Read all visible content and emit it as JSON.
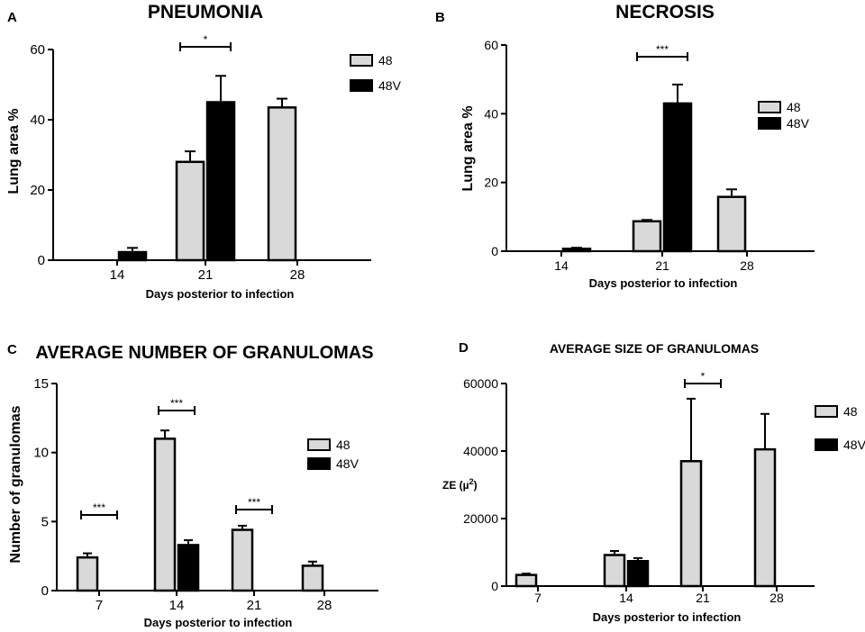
{
  "colors": {
    "series_48": "#d9d9d9",
    "series_48V": "#000000",
    "stroke": "#000000"
  },
  "chart_data": [
    {
      "panel": "A",
      "type": "bar",
      "title": "PNEUMONIA",
      "xlabel": "Days posterior to infection",
      "ylabel": "Lung area %",
      "ylim": [
        0,
        60
      ],
      "yticks": [
        "0",
        "20",
        "40",
        "60"
      ],
      "categories": [
        "14",
        "21",
        "28"
      ],
      "legend": [
        "48",
        "48V"
      ],
      "legend_position": "top-right",
      "series": [
        {
          "name": "48",
          "values": [
            null,
            28,
            43.5
          ],
          "errors": [
            null,
            3,
            2.5
          ]
        },
        {
          "name": "48V",
          "values": [
            2.3,
            45,
            null
          ],
          "errors": [
            1.2,
            7.5,
            null
          ]
        }
      ],
      "significance": [
        {
          "category": "21",
          "label": "*"
        }
      ]
    },
    {
      "panel": "B",
      "type": "bar",
      "title": "NECROSIS",
      "xlabel": "Days posterior to infection",
      "ylabel": "Lung area %",
      "ylim": [
        0,
        60
      ],
      "yticks": [
        "0",
        "20",
        "40",
        "60"
      ],
      "categories": [
        "14",
        "21",
        "28"
      ],
      "legend": [
        "48",
        "48V"
      ],
      "legend_position": "middle-right",
      "series": [
        {
          "name": "48",
          "values": [
            null,
            8.7,
            15.8
          ],
          "errors": [
            null,
            0.4,
            2.2
          ]
        },
        {
          "name": "48V",
          "values": [
            0.7,
            43,
            null
          ],
          "errors": [
            0.3,
            5.5,
            null
          ]
        }
      ],
      "significance": [
        {
          "category": "21",
          "label": "***"
        }
      ]
    },
    {
      "panel": "C",
      "type": "bar",
      "title": "AVERAGE NUMBER OF GRANULOMAS",
      "xlabel": "Days posterior to infection",
      "ylabel": "Number of granulomas",
      "ylim": [
        0,
        15
      ],
      "yticks": [
        "0",
        "5",
        "10",
        "15"
      ],
      "categories": [
        "7",
        "14",
        "21",
        "28"
      ],
      "legend": [
        "48",
        "48V"
      ],
      "legend_position": "middle-right",
      "series": [
        {
          "name": "48",
          "values": [
            2.4,
            11,
            4.4,
            1.8
          ],
          "errors": [
            0.3,
            0.6,
            0.3,
            0.3
          ]
        },
        {
          "name": "48V",
          "values": [
            null,
            3.3,
            null,
            null
          ],
          "errors": [
            null,
            0.35,
            null,
            null
          ]
        }
      ],
      "significance": [
        {
          "category": "7",
          "label": "***"
        },
        {
          "category": "14",
          "label": "***"
        },
        {
          "category": "21",
          "label": "***"
        }
      ]
    },
    {
      "panel": "D",
      "type": "bar",
      "title": "AVERAGE SIZE OF GRANULOMAS",
      "xlabel": "Days posterior to infection",
      "ylabel": "ZE (µ²)",
      "ylim": [
        0,
        60000
      ],
      "yticks": [
        "0",
        "20000",
        "40000",
        "60000"
      ],
      "categories": [
        "7",
        "14",
        "21",
        "28"
      ],
      "legend": [
        "48",
        "48V"
      ],
      "legend_position": "top-right",
      "series": [
        {
          "name": "48",
          "values": [
            3300,
            9200,
            37000,
            40500
          ],
          "errors": [
            400,
            1200,
            18500,
            10500
          ]
        },
        {
          "name": "48V",
          "values": [
            null,
            7400,
            null,
            null
          ],
          "errors": [
            null,
            900,
            null,
            null
          ]
        }
      ],
      "significance": [
        {
          "category": "21",
          "label": "*"
        }
      ]
    }
  ]
}
